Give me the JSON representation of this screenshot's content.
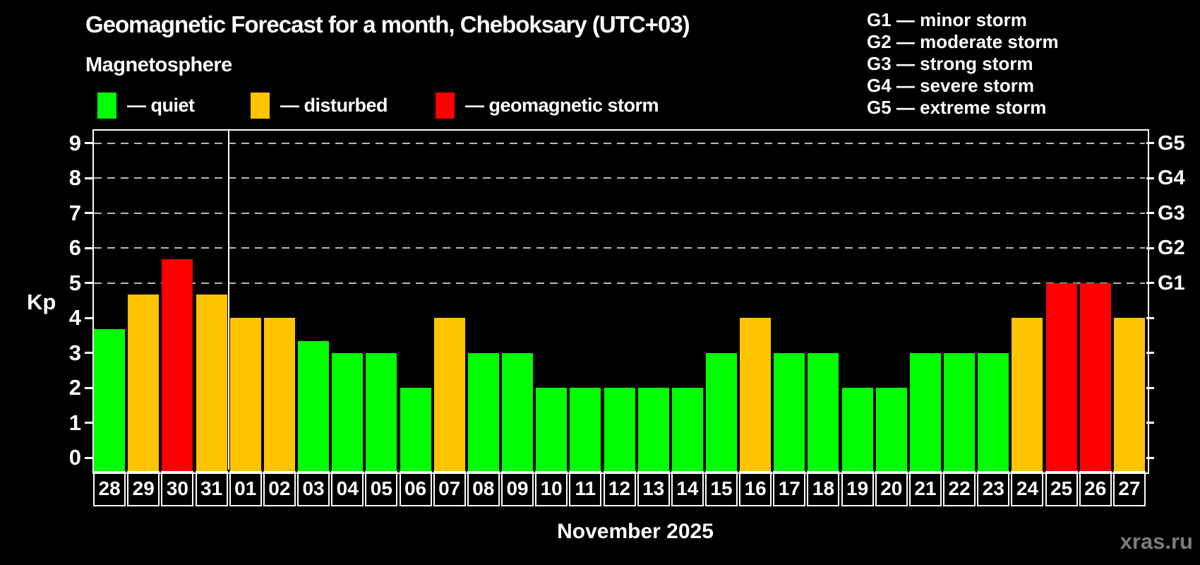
{
  "header": {
    "title": "Geomagnetic Forecast for a month, Cheboksary (UTC+03)",
    "subtitle": "Magnetosphere"
  },
  "legend": {
    "items": [
      {
        "status": "quiet",
        "label": "— quiet"
      },
      {
        "status": "disturbed",
        "label": "— disturbed"
      },
      {
        "status": "storm",
        "label": "— geomagnetic storm"
      }
    ]
  },
  "storm_legend": {
    "lines": [
      "G1 — minor storm",
      "G2 — moderate storm",
      "G3 — strong storm",
      "G4 — severe storm",
      "G5 — extreme storm"
    ]
  },
  "colors": {
    "quiet": "#00ff00",
    "disturbed": "#ffc400",
    "storm": "#ff0000",
    "frame": "#ffffff",
    "grid": "#b8b8b8",
    "watermark": "#7c7c7c"
  },
  "footer": {
    "month_label": "November 2025",
    "watermark": "xras.ru"
  },
  "chart_data": {
    "type": "bar",
    "title": "Geomagnetic Forecast for a month, Cheboksary (UTC+03)",
    "subtitle": "Magnetosphere",
    "xlabel": "November 2025",
    "ylabel": "Kp",
    "ylim": [
      0,
      9
    ],
    "y_ticks": [
      0,
      1,
      2,
      3,
      4,
      5,
      6,
      7,
      8,
      9
    ],
    "grid_levels": [
      5,
      6,
      7,
      8,
      9
    ],
    "grid_style": "dashed",
    "legend_position": "top",
    "right_axis": [
      {
        "label": "G1",
        "kp": 5
      },
      {
        "label": "G2",
        "kp": 6
      },
      {
        "label": "G3",
        "kp": 7
      },
      {
        "label": "G4",
        "kp": 8
      },
      {
        "label": "G5",
        "kp": 9
      }
    ],
    "month_separator_after": "31",
    "bars": [
      {
        "date": "28",
        "kp": 3.67,
        "status": "quiet"
      },
      {
        "date": "29",
        "kp": 4.67,
        "status": "disturbed"
      },
      {
        "date": "30",
        "kp": 5.67,
        "status": "storm"
      },
      {
        "date": "31",
        "kp": 4.67,
        "status": "disturbed"
      },
      {
        "date": "01",
        "kp": 4,
        "status": "disturbed"
      },
      {
        "date": "02",
        "kp": 4,
        "status": "disturbed"
      },
      {
        "date": "03",
        "kp": 3.33,
        "status": "quiet"
      },
      {
        "date": "04",
        "kp": 3,
        "status": "quiet"
      },
      {
        "date": "05",
        "kp": 3,
        "status": "quiet"
      },
      {
        "date": "06",
        "kp": 2,
        "status": "quiet"
      },
      {
        "date": "07",
        "kp": 4,
        "status": "disturbed"
      },
      {
        "date": "08",
        "kp": 3,
        "status": "quiet"
      },
      {
        "date": "09",
        "kp": 3,
        "status": "quiet"
      },
      {
        "date": "10",
        "kp": 2,
        "status": "quiet"
      },
      {
        "date": "11",
        "kp": 2,
        "status": "quiet"
      },
      {
        "date": "12",
        "kp": 2,
        "status": "quiet"
      },
      {
        "date": "13",
        "kp": 2,
        "status": "quiet"
      },
      {
        "date": "14",
        "kp": 2,
        "status": "quiet"
      },
      {
        "date": "15",
        "kp": 3,
        "status": "quiet"
      },
      {
        "date": "16",
        "kp": 4,
        "status": "disturbed"
      },
      {
        "date": "17",
        "kp": 3,
        "status": "quiet"
      },
      {
        "date": "18",
        "kp": 3,
        "status": "quiet"
      },
      {
        "date": "19",
        "kp": 2,
        "status": "quiet"
      },
      {
        "date": "20",
        "kp": 2,
        "status": "quiet"
      },
      {
        "date": "21",
        "kp": 3,
        "status": "quiet"
      },
      {
        "date": "22",
        "kp": 3,
        "status": "quiet"
      },
      {
        "date": "23",
        "kp": 3,
        "status": "quiet"
      },
      {
        "date": "24",
        "kp": 4,
        "status": "disturbed"
      },
      {
        "date": "25",
        "kp": 5,
        "status": "storm"
      },
      {
        "date": "26",
        "kp": 5,
        "status": "storm"
      },
      {
        "date": "27",
        "kp": 4,
        "status": "disturbed"
      }
    ]
  }
}
